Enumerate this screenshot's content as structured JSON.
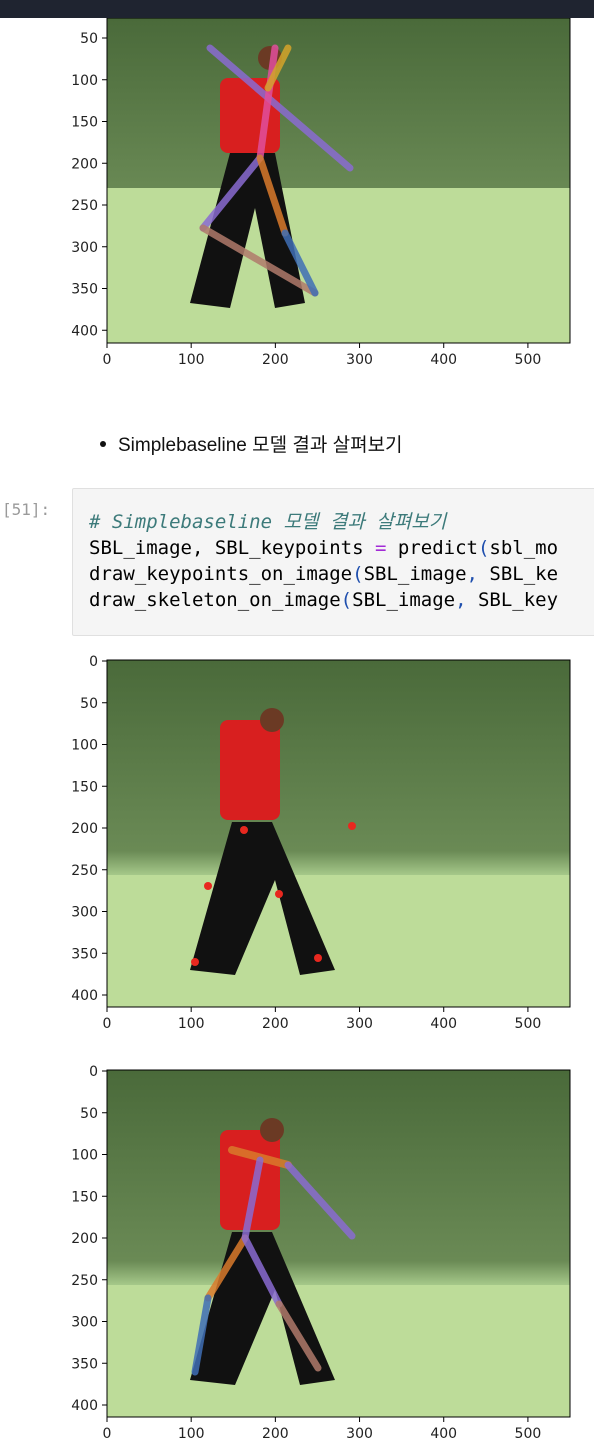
{
  "markdown": {
    "bullet": "Simplebaseline 모델 결과 살펴보기"
  },
  "cell": {
    "prompt": "[51]:",
    "comment": "# Simplebaseline 모델 결과 살펴보기",
    "line2": {
      "a": "SBL_image",
      "b": ", SBL_keypoints ",
      "op": "=",
      "c": " predict",
      "p": "(",
      "d": "sbl_mo"
    },
    "line3": {
      "a": "draw_keypoints_on_image",
      "p": "(",
      "b": "SBL_image",
      "c": ",",
      "d": " SBL_ke"
    },
    "line4": {
      "a": "draw_skeleton_on_image",
      "p": "(",
      "b": "SBL_image",
      "c": ",",
      "d": " SBL_key"
    }
  },
  "plots": {
    "x_ticks": [
      "0",
      "100",
      "200",
      "300",
      "400",
      "500"
    ],
    "y_ticks": [
      "0",
      "50",
      "100",
      "150",
      "200",
      "250",
      "300",
      "350",
      "400"
    ],
    "plot1_y_ticks": [
      "50",
      "100",
      "150",
      "200",
      "250",
      "300",
      "350",
      "400"
    ]
  },
  "icons": {
    "plot1": "skeleton-image",
    "plot2": "keypoints-image",
    "plot3": "skeleton-image"
  },
  "colors": {
    "bg_cell": "#f5f5f5",
    "prompt": "#9a9a9a",
    "topbar": "#1f2430"
  }
}
